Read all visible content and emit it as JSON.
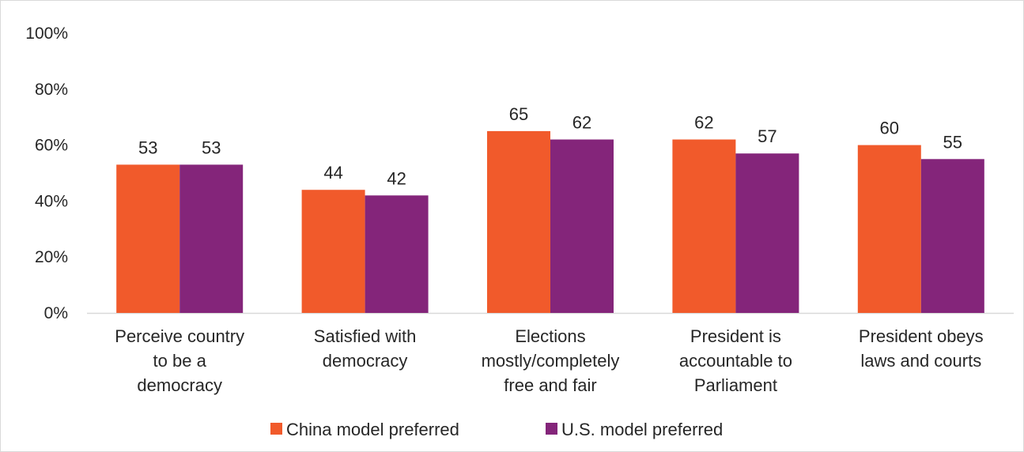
{
  "chart_data": {
    "type": "bar",
    "categories": [
      [
        "Perceive country",
        "to be a",
        "democracy"
      ],
      [
        "Satisfied with",
        "democracy"
      ],
      [
        "Elections",
        "mostly/completely",
        "free and fair"
      ],
      [
        "President is",
        "accountable to",
        "Parliament"
      ],
      [
        "President obeys",
        "laws and courts"
      ]
    ],
    "series": [
      {
        "name": "China model preferred",
        "values": [
          53,
          44,
          65,
          62,
          60
        ],
        "color": "#f15a2b"
      },
      {
        "name": "U.S. model preferred",
        "values": [
          53,
          42,
          62,
          57,
          55
        ],
        "color": "#84257a"
      }
    ],
    "yticks": [
      "0%",
      "20%",
      "40%",
      "60%",
      "80%",
      "100%"
    ],
    "ylim": [
      0,
      100
    ],
    "legend": "bottom-center",
    "grid": false
  }
}
